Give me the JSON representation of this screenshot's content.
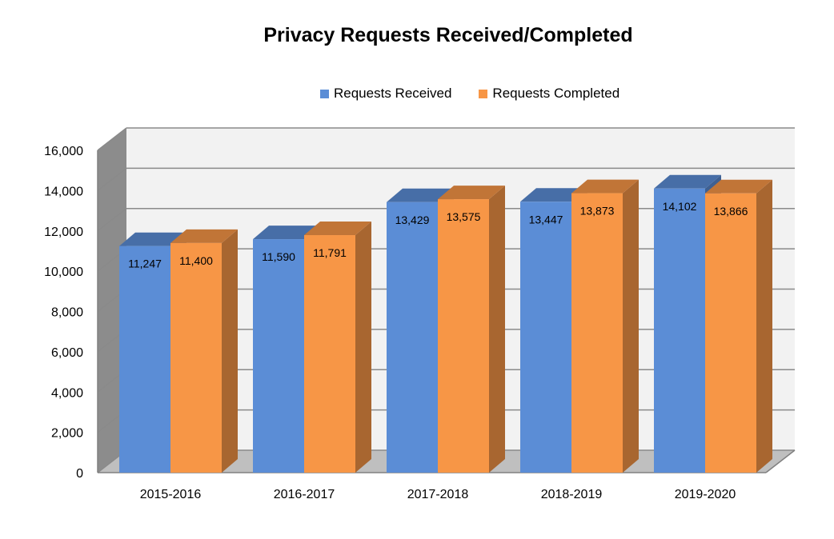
{
  "chart_data": {
    "type": "bar",
    "title": "Privacy Requests Received/Completed",
    "categories": [
      "2015-2016",
      "2016-2017",
      "2017-2018",
      "2018-2019",
      "2019-2020"
    ],
    "series": [
      {
        "name": "Requests Received",
        "values": [
          11247,
          11590,
          13429,
          13447,
          14102
        ],
        "color": "#5B8DD6"
      },
      {
        "name": "Requests Completed",
        "values": [
          11400,
          11791,
          13575,
          13873,
          13866
        ],
        "color": "#F79646"
      }
    ],
    "value_labels": [
      [
        "11,247",
        "11,590",
        "13,429",
        "13,447",
        "14,102"
      ],
      [
        "11,400",
        "11,791",
        "13,575",
        "13,873",
        "13,866"
      ]
    ],
    "y_ticks": [
      "0",
      "2,000",
      "4,000",
      "6,000",
      "8,000",
      "10,000",
      "12,000",
      "14,000",
      "16,000"
    ],
    "ylim": [
      0,
      16000
    ],
    "xlabel": "",
    "ylabel": "",
    "grid": true,
    "legend_position": "top",
    "style": "3d-clustered-column"
  }
}
